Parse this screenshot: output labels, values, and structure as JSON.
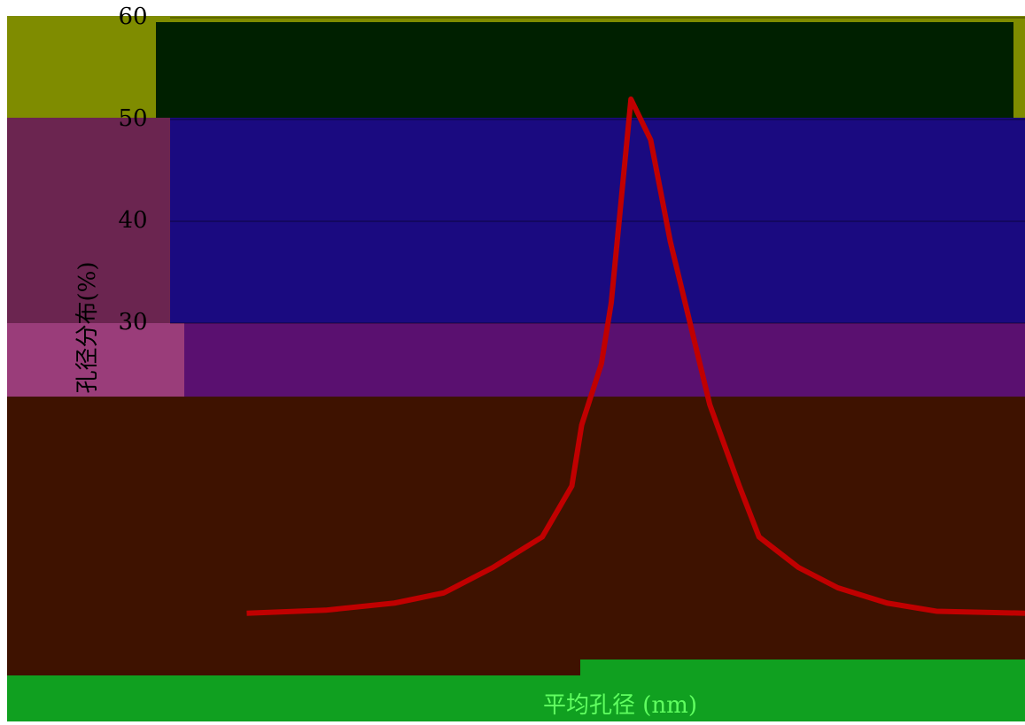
{
  "chart_data": {
    "type": "line",
    "y_label": "孔径分布(%)",
    "x_label": "平均孔径 (nm)",
    "xlim": [
      0,
      100
    ],
    "ylim": [
      0,
      60
    ],
    "yticks": [
      30,
      40,
      50,
      60
    ],
    "grid": true,
    "series": [
      {
        "color": "#c00000",
        "x": [
          21,
          29,
          36,
          41,
          46,
          51,
          54,
          55,
          57,
          58,
          59,
          60,
          62,
          64,
          66,
          68,
          71,
          73,
          77,
          81,
          86,
          91,
          100
        ],
        "values": [
          1.5,
          1.8,
          2.5,
          3.5,
          6,
          9,
          14,
          20,
          26,
          32,
          42,
          52,
          48,
          38,
          30,
          22,
          14,
          9,
          6,
          4,
          2.5,
          1.7,
          1.5
        ]
      }
    ]
  }
}
